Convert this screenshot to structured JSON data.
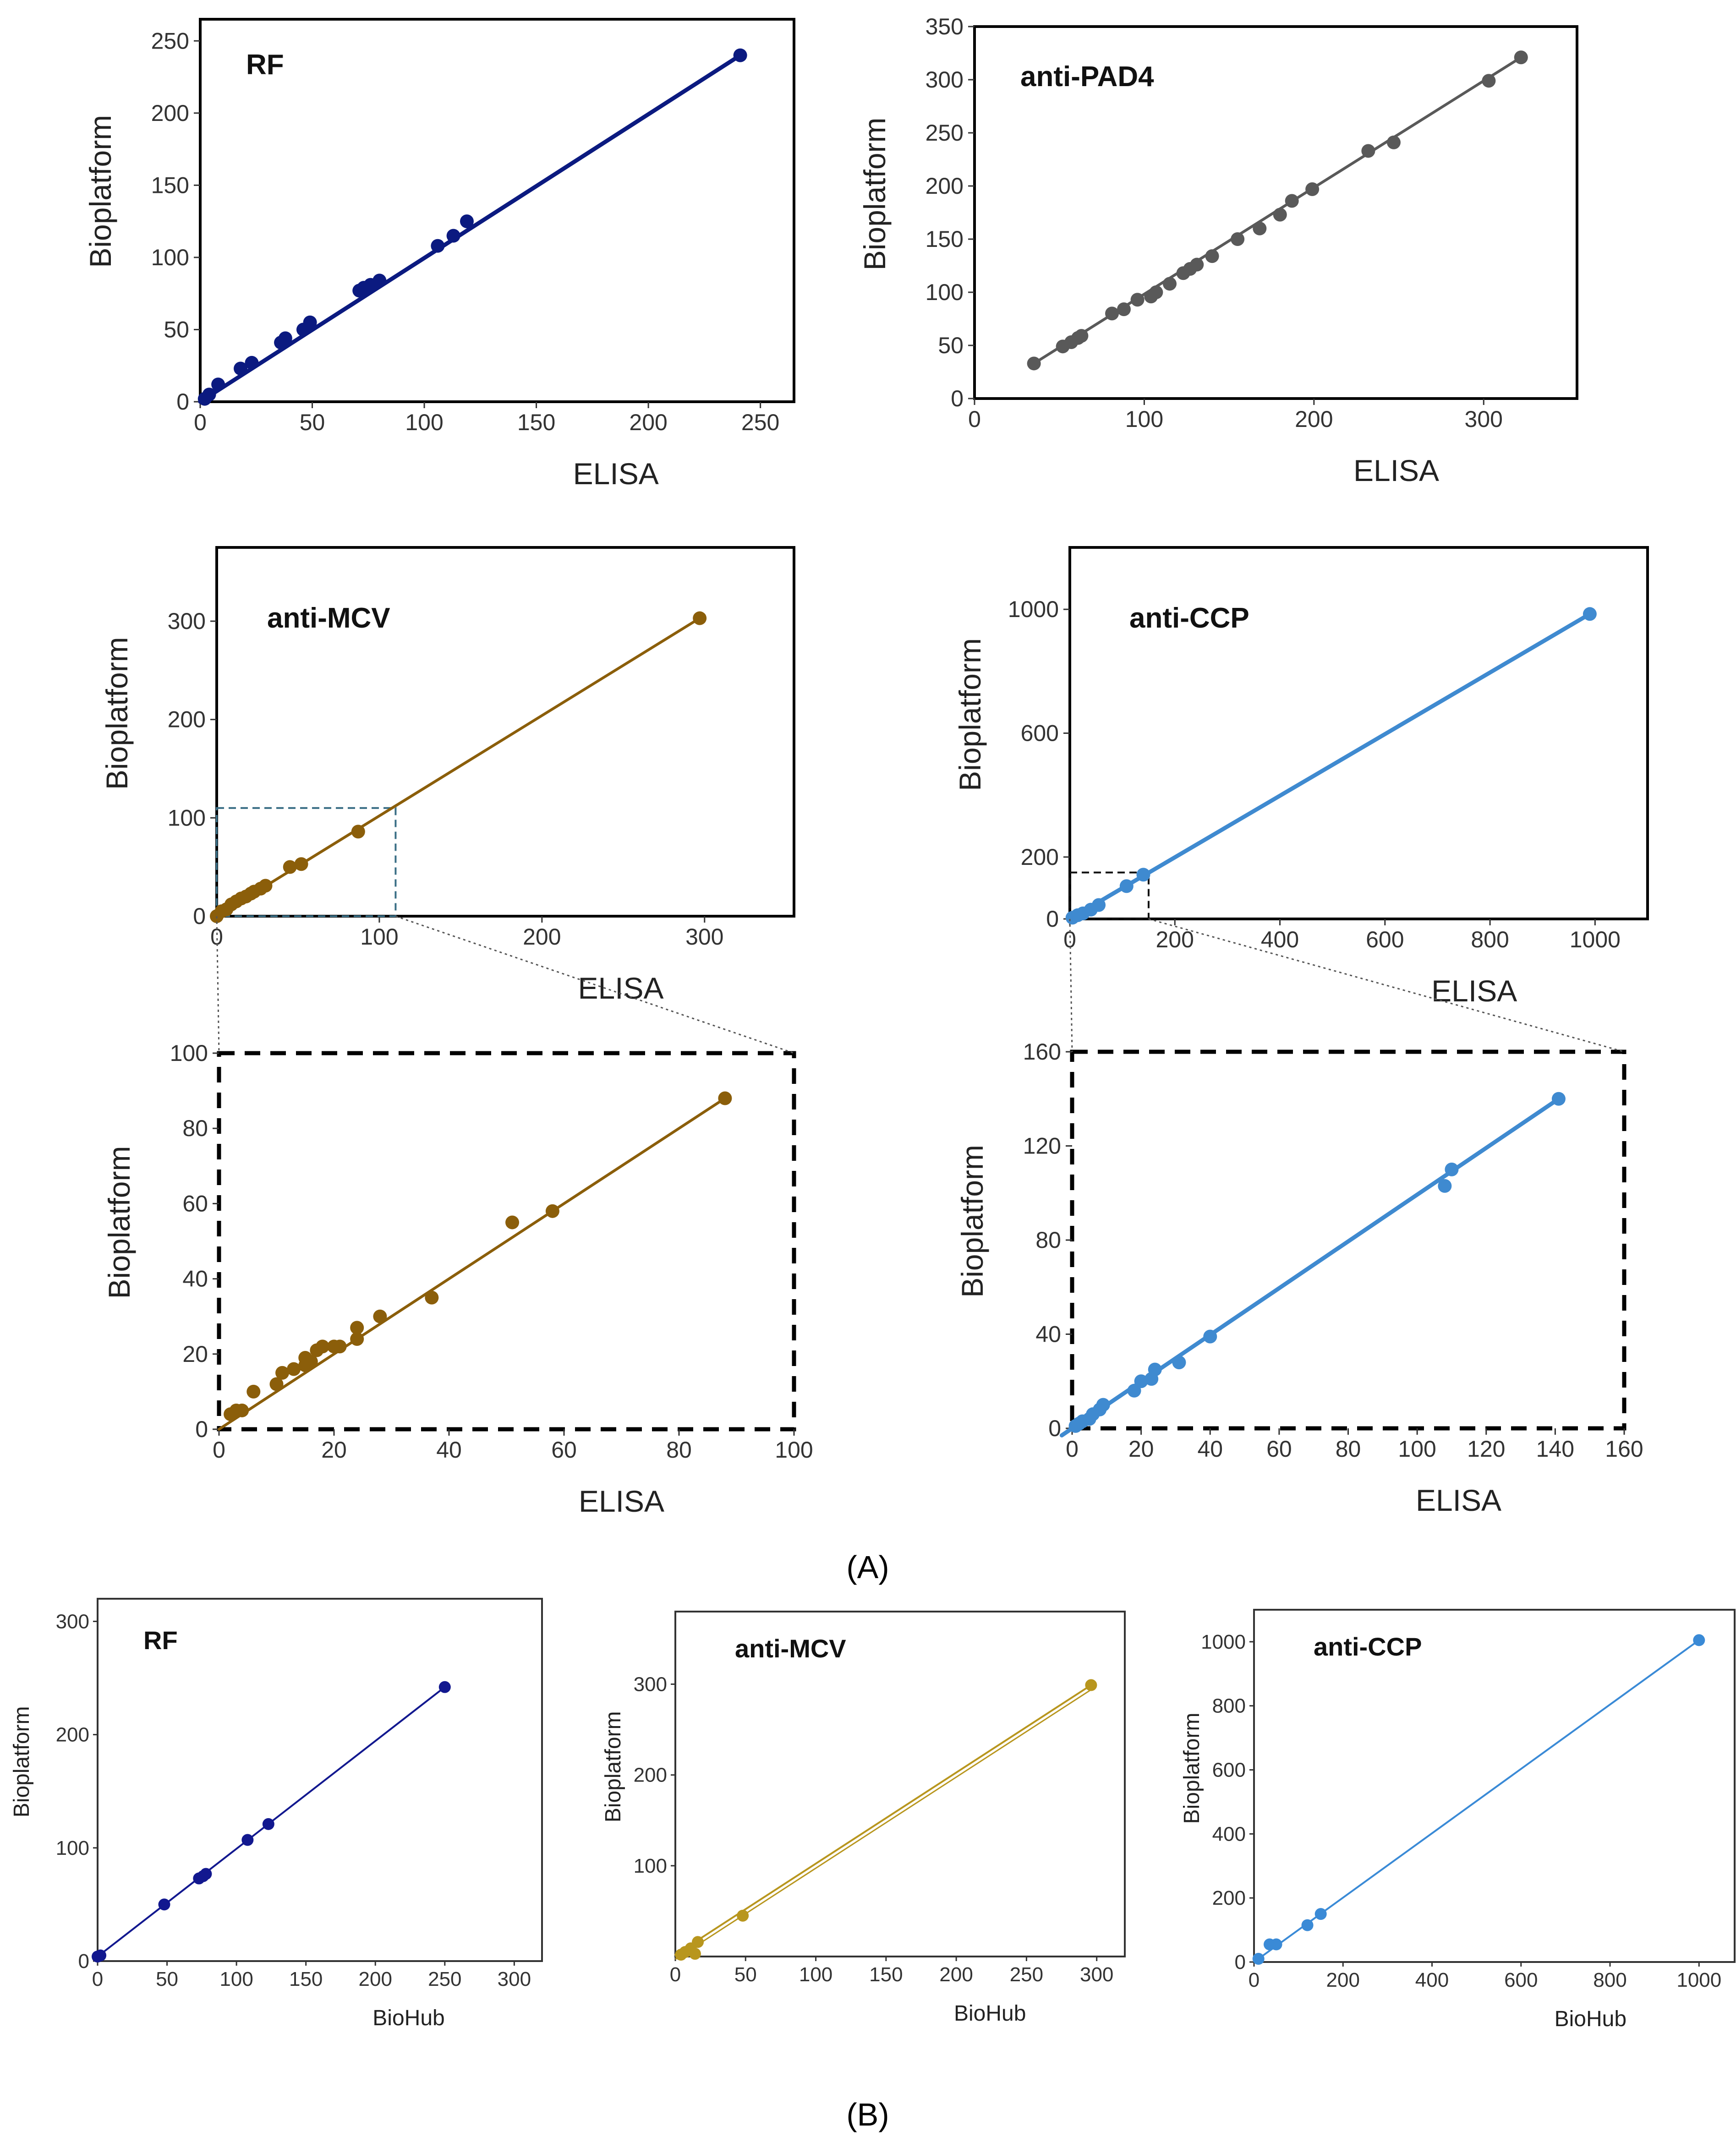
{
  "figure_labels": {
    "A": "(A)",
    "B": "(B)"
  },
  "chart_data": [
    {
      "id": "rf_a",
      "type": "scatter",
      "title": "RF",
      "xlabel": "ELISA",
      "ylabel": "Bioplatform",
      "xlim": [
        0,
        265
      ],
      "ylim": [
        0,
        265
      ],
      "xticks": [
        0,
        50,
        100,
        150,
        200,
        250
      ],
      "yticks": [
        0,
        50,
        100,
        150,
        200,
        250
      ],
      "color": "#0b1a80",
      "points": [
        [
          2,
          2
        ],
        [
          4,
          5
        ],
        [
          8,
          12
        ],
        [
          18,
          23
        ],
        [
          23,
          27
        ],
        [
          36,
          41
        ],
        [
          38,
          44
        ],
        [
          46,
          50
        ],
        [
          49,
          55
        ],
        [
          71,
          77
        ],
        [
          73,
          79
        ],
        [
          76,
          81
        ],
        [
          80,
          84
        ],
        [
          106,
          108
        ],
        [
          113,
          115
        ],
        [
          119,
          125
        ],
        [
          241,
          240
        ]
      ],
      "fit": [
        [
          0,
          0
        ],
        [
          241,
          240
        ]
      ]
    },
    {
      "id": "pad4_a",
      "type": "scatter",
      "title": "anti-PAD4",
      "xlabel": "ELISA",
      "ylabel": "Bioplatform",
      "xlim": [
        0,
        355
      ],
      "ylim": [
        0,
        350
      ],
      "xticks": [
        0,
        100,
        200,
        300
      ],
      "yticks": [
        0,
        50,
        100,
        150,
        200,
        250,
        300,
        350
      ],
      "color": "#595959",
      "points": [
        [
          35,
          33
        ],
        [
          52,
          49
        ],
        [
          57,
          53
        ],
        [
          61,
          57
        ],
        [
          63,
          59
        ],
        [
          81,
          80
        ],
        [
          88,
          84
        ],
        [
          96,
          93
        ],
        [
          104,
          96
        ],
        [
          107,
          100
        ],
        [
          115,
          108
        ],
        [
          123,
          118
        ],
        [
          127,
          122
        ],
        [
          131,
          126
        ],
        [
          140,
          134
        ],
        [
          155,
          150
        ],
        [
          168,
          160
        ],
        [
          180,
          173
        ],
        [
          187,
          186
        ],
        [
          199,
          197
        ],
        [
          232,
          233
        ],
        [
          247,
          241
        ],
        [
          303,
          299
        ],
        [
          322,
          321
        ]
      ],
      "fit": [
        [
          35,
          33
        ],
        [
          322,
          321
        ]
      ]
    },
    {
      "id": "mcv_a",
      "type": "scatter",
      "title": "anti-MCV",
      "xlabel": "ELISA",
      "ylabel": "Bioplatform",
      "xlim": [
        0,
        355
      ],
      "ylim": [
        0,
        375
      ],
      "xticks": [
        0,
        100,
        200,
        300
      ],
      "yticks": [
        0,
        100,
        200,
        300
      ],
      "color": "#8b5e0a",
      "points": [
        [
          0,
          0
        ],
        [
          3,
          5
        ],
        [
          6,
          7
        ],
        [
          9,
          12
        ],
        [
          12,
          15
        ],
        [
          15,
          18
        ],
        [
          18,
          20
        ],
        [
          21,
          23
        ],
        [
          23,
          25
        ],
        [
          27,
          28
        ],
        [
          30,
          31
        ],
        [
          45,
          50
        ],
        [
          52,
          53
        ],
        [
          87,
          86
        ],
        [
          297,
          303
        ]
      ],
      "fit": [
        [
          0,
          0
        ],
        [
          297,
          303
        ]
      ],
      "zoom_box": [
        0,
        110,
        0,
        110
      ]
    },
    {
      "id": "ccp_a",
      "type": "scatter",
      "title": "anti-CCP",
      "xlabel": "ELISA",
      "ylabel": "Bioplatform",
      "xlim": [
        0,
        1100
      ],
      "ylim": [
        0,
        1200
      ],
      "xticks": [
        0,
        200,
        400,
        600,
        800,
        1000
      ],
      "yticks": [
        0,
        200,
        600,
        1000
      ],
      "color": "#3f8ad0",
      "points": [
        [
          5,
          4
        ],
        [
          15,
          12
        ],
        [
          25,
          18
        ],
        [
          40,
          30
        ],
        [
          55,
          45
        ],
        [
          108,
          106
        ],
        [
          140,
          143
        ],
        [
          990,
          985
        ]
      ],
      "fit": [
        [
          0,
          0
        ],
        [
          990,
          985
        ]
      ],
      "zoom_box": [
        0,
        150,
        0,
        150
      ]
    },
    {
      "id": "mcv_zoom",
      "type": "scatter",
      "title": "",
      "xlabel": "ELISA",
      "ylabel": "Bioplatform",
      "xlim": [
        0,
        100
      ],
      "ylim": [
        0,
        100
      ],
      "xticks": [
        0,
        20,
        40,
        60,
        80,
        100
      ],
      "yticks": [
        0,
        20,
        40,
        60,
        80,
        100
      ],
      "color": "#8b5e0a",
      "points": [
        [
          2,
          4
        ],
        [
          3,
          5
        ],
        [
          4,
          5
        ],
        [
          6,
          10
        ],
        [
          10,
          12
        ],
        [
          11,
          15
        ],
        [
          13,
          16
        ],
        [
          15,
          17
        ],
        [
          15,
          19
        ],
        [
          16,
          18
        ],
        [
          17,
          21
        ],
        [
          18,
          22
        ],
        [
          20,
          22
        ],
        [
          21,
          22
        ],
        [
          24,
          24
        ],
        [
          24,
          27
        ],
        [
          28,
          30
        ],
        [
          37,
          35
        ],
        [
          51,
          55
        ],
        [
          58,
          58
        ],
        [
          88,
          88
        ]
      ],
      "fit": [
        [
          0,
          0
        ],
        [
          88,
          88
        ]
      ]
    },
    {
      "id": "ccp_zoom",
      "type": "scatter",
      "title": "",
      "xlabel": "ELISA",
      "ylabel": "Bioplatform",
      "xlim": [
        0,
        160
      ],
      "ylim": [
        0,
        160
      ],
      "xticks": [
        0,
        20,
        40,
        60,
        80,
        100,
        120,
        140,
        160
      ],
      "yticks": [
        0,
        40,
        80,
        120,
        160
      ],
      "color": "#3f8ad0",
      "points": [
        [
          1,
          1
        ],
        [
          2,
          2
        ],
        [
          3,
          3
        ],
        [
          5,
          4
        ],
        [
          6,
          6
        ],
        [
          8,
          8
        ],
        [
          9,
          10
        ],
        [
          18,
          16
        ],
        [
          20,
          20
        ],
        [
          23,
          21
        ],
        [
          24,
          25
        ],
        [
          31,
          28
        ],
        [
          40,
          39
        ],
        [
          108,
          103
        ],
        [
          110,
          110
        ],
        [
          141,
          140
        ]
      ],
      "fit": [
        [
          -3,
          -3
        ],
        [
          141,
          140
        ]
      ]
    },
    {
      "id": "rf_b",
      "type": "scatter",
      "title": "RF",
      "xlabel": "BioHub",
      "ylabel": "Bioplatform",
      "xlim": [
        0,
        320
      ],
      "ylim": [
        0,
        320
      ],
      "xticks": [
        0,
        50,
        100,
        150,
        200,
        250,
        300
      ],
      "yticks": [
        0,
        100,
        200,
        300
      ],
      "color": "#12188f",
      "points": [
        [
          0,
          4
        ],
        [
          2,
          5
        ],
        [
          48,
          50
        ],
        [
          73,
          73
        ],
        [
          76,
          75
        ],
        [
          78,
          77
        ],
        [
          108,
          107
        ],
        [
          123,
          121
        ],
        [
          250,
          242
        ]
      ],
      "fit": [
        [
          0,
          4
        ],
        [
          250,
          242
        ]
      ]
    },
    {
      "id": "mcv_b",
      "type": "scatter",
      "title": "anti-MCV",
      "xlabel": "BioHub",
      "ylabel": "Bioplatform",
      "xlim": [
        0,
        320
      ],
      "ylim": [
        0,
        380
      ],
      "xticks": [
        0,
        50,
        100,
        150,
        200,
        250,
        300
      ],
      "yticks": [
        100,
        200,
        300
      ],
      "color": "#b8961e",
      "points": [
        [
          4,
          2
        ],
        [
          7,
          5
        ],
        [
          11,
          9
        ],
        [
          14,
          3
        ],
        [
          16,
          16
        ],
        [
          48,
          45
        ],
        [
          296,
          299
        ]
      ],
      "fit": [
        [
          0,
          2
        ],
        [
          296,
          299
        ]
      ]
    },
    {
      "id": "ccp_b",
      "type": "scatter",
      "title": "anti-CCP",
      "xlabel": "BioHub",
      "ylabel": "Bioplatform",
      "xlim": [
        0,
        1080
      ],
      "ylim": [
        0,
        1100
      ],
      "xticks": [
        0,
        200,
        400,
        600,
        800,
        1000
      ],
      "yticks": [
        0,
        200,
        400,
        600,
        800,
        1000
      ],
      "color": "#3a8ad6",
      "points": [
        [
          10,
          10
        ],
        [
          35,
          55
        ],
        [
          50,
          55
        ],
        [
          120,
          115
        ],
        [
          150,
          150
        ],
        [
          1000,
          1005
        ]
      ],
      "fit": [
        [
          10,
          10
        ],
        [
          1000,
          1005
        ]
      ]
    }
  ]
}
